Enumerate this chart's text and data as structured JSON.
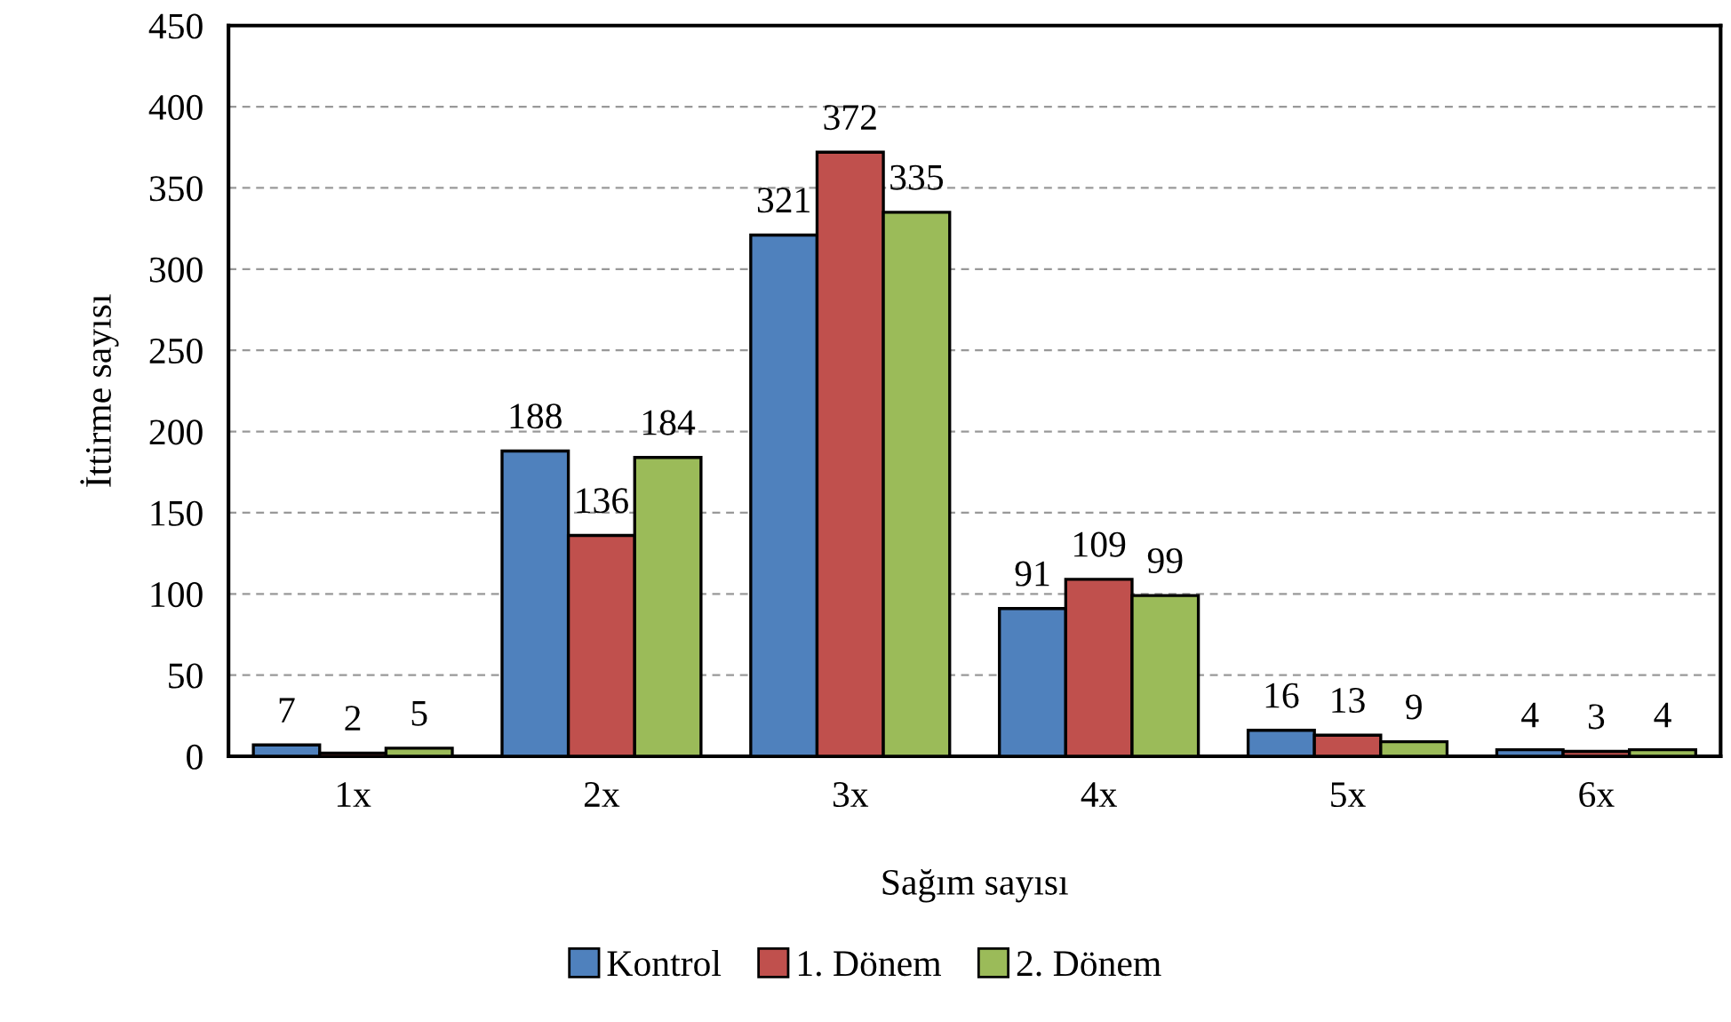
{
  "chart_data": {
    "type": "bar",
    "xlabel": "Sağım sayısı",
    "ylabel": "İttirme sayısı",
    "categories": [
      "1x",
      "2x",
      "3x",
      "4x",
      "5x",
      "6x"
    ],
    "series": [
      {
        "name": "Kontrol",
        "color": "#4f81bd",
        "values": [
          7,
          188,
          321,
          91,
          16,
          4
        ]
      },
      {
        "name": "1. Dönem",
        "color": "#c0504d",
        "values": [
          2,
          136,
          372,
          109,
          13,
          3
        ]
      },
      {
        "name": "2. Dönem",
        "color": "#9bbb59",
        "values": [
          5,
          184,
          335,
          99,
          9,
          4
        ]
      }
    ],
    "ylim": [
      0,
      450
    ],
    "yticks": [
      0,
      50,
      100,
      150,
      200,
      250,
      300,
      350,
      400,
      450
    ],
    "grid": "y",
    "legend": "bottom",
    "data_labels": true
  }
}
